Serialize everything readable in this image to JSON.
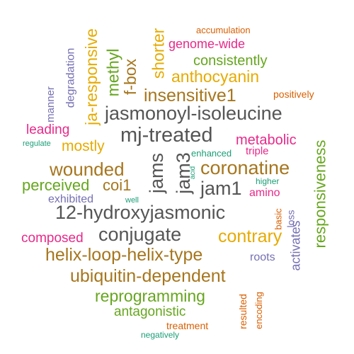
{
  "palette": {
    "teal": "#1b9e77",
    "orange": "#d95f02",
    "purple": "#7570b3",
    "magenta": "#e7298a",
    "green": "#66a61e",
    "gold": "#e6ab02",
    "brown": "#a6761d",
    "gray": "#555555"
  },
  "words": [
    {
      "text": "accumulation",
      "color": "orange"
    },
    {
      "text": "genome-wide",
      "color": "magenta"
    },
    {
      "text": "consistently",
      "color": "green"
    },
    {
      "text": "anthocyanin",
      "color": "gold"
    },
    {
      "text": "shorter",
      "color": "gold"
    },
    {
      "text": "f-box",
      "color": "brown"
    },
    {
      "text": "methyl",
      "color": "green"
    },
    {
      "text": "ja-responsive",
      "color": "gold"
    },
    {
      "text": "degradation",
      "color": "purple"
    },
    {
      "text": "manner",
      "color": "purple"
    },
    {
      "text": "positively",
      "color": "orange"
    },
    {
      "text": "insensitive1",
      "color": "brown"
    },
    {
      "text": "jasmonoyl-isoleucine",
      "color": "gray"
    },
    {
      "text": "leading",
      "color": "magenta"
    },
    {
      "text": "mj-treated",
      "color": "gray"
    },
    {
      "text": "metabolic",
      "color": "magenta"
    },
    {
      "text": "regulate",
      "color": "teal"
    },
    {
      "text": "mostly",
      "color": "gold"
    },
    {
      "text": "triple",
      "color": "magenta"
    },
    {
      "text": "enhanced",
      "color": "teal"
    },
    {
      "text": "responsiveness",
      "color": "green"
    },
    {
      "text": "wounded",
      "color": "brown"
    },
    {
      "text": "jams",
      "color": "gray"
    },
    {
      "text": "jam3",
      "color": "gray"
    },
    {
      "text": "acid",
      "color": "teal"
    },
    {
      "text": "coronatine",
      "color": "brown"
    },
    {
      "text": "perceived",
      "color": "green"
    },
    {
      "text": "coi1",
      "color": "brown"
    },
    {
      "text": "jam1",
      "color": "gray"
    },
    {
      "text": "higher",
      "color": "teal"
    },
    {
      "text": "amino",
      "color": "magenta"
    },
    {
      "text": "exhibited",
      "color": "purple"
    },
    {
      "text": "well",
      "color": "teal"
    },
    {
      "text": "12-hydroxyjasmonic",
      "color": "gray"
    },
    {
      "text": "basic",
      "color": "orange"
    },
    {
      "text": "loss",
      "color": "purple"
    },
    {
      "text": "activates",
      "color": "purple"
    },
    {
      "text": "composed",
      "color": "magenta"
    },
    {
      "text": "conjugate",
      "color": "gray"
    },
    {
      "text": "contrary",
      "color": "gold"
    },
    {
      "text": "helix-loop-helix-type",
      "color": "brown"
    },
    {
      "text": "roots",
      "color": "purple"
    },
    {
      "text": "ubiquitin-dependent",
      "color": "brown"
    },
    {
      "text": "reprogramming",
      "color": "green"
    },
    {
      "text": "antagonistic",
      "color": "green"
    },
    {
      "text": "resulted",
      "color": "orange"
    },
    {
      "text": "encoding",
      "color": "orange"
    },
    {
      "text": "treatment",
      "color": "orange"
    },
    {
      "text": "negatively",
      "color": "teal"
    }
  ]
}
